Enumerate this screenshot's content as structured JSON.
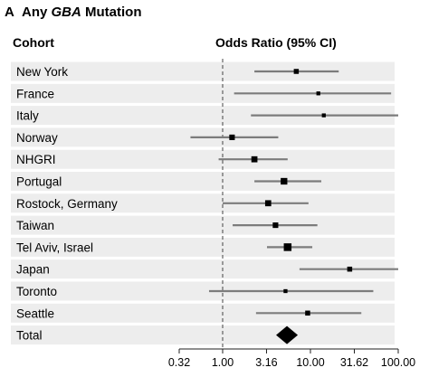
{
  "panel": {
    "letter": "A",
    "title_prefix": "Any ",
    "title_gene": "GBA",
    "title_suffix": " Mutation"
  },
  "headers": {
    "cohort": "Cohort",
    "odds_ratio": "Odds Ratio (95% CI)"
  },
  "colors": {
    "stripe": "#ededed",
    "ci_line": "#7c7c7c",
    "marker": "#000000",
    "reference_line": "#444444",
    "axis": "#222222"
  },
  "chart_data": {
    "type": "forest",
    "x_scale": "log",
    "xlim": [
      0.32,
      100.0
    ],
    "reference_value": 1.0,
    "x_ticks": [
      "0.32",
      "1.00",
      "3.16",
      "10.00",
      "31.62",
      "100.00"
    ],
    "x_tick_values": [
      0.32,
      1.0,
      3.16,
      10.0,
      31.62,
      100.0
    ],
    "rows": [
      {
        "label": "New York",
        "or": 6.9,
        "lower": 2.3,
        "upper": 21.0,
        "weight": 0.5
      },
      {
        "label": "France",
        "or": 12.3,
        "lower": 1.35,
        "upper": 83.0,
        "weight": 0.3
      },
      {
        "label": "Italy",
        "or": 14.2,
        "lower": 2.1,
        "upper": 100.0,
        "weight": 0.3
      },
      {
        "label": "Norway",
        "or": 1.28,
        "lower": 0.43,
        "upper": 4.3,
        "weight": 0.6
      },
      {
        "label": "NHGRI",
        "or": 2.3,
        "lower": 0.9,
        "upper": 5.5,
        "weight": 0.7
      },
      {
        "label": "Portugal",
        "or": 5.0,
        "lower": 2.3,
        "upper": 13.3,
        "weight": 0.8
      },
      {
        "label": "Rostock, Germany",
        "or": 3.3,
        "lower": 1.0,
        "upper": 9.5,
        "weight": 0.7
      },
      {
        "label": "Taiwan",
        "or": 4.0,
        "lower": 1.3,
        "upper": 12.0,
        "weight": 0.6
      },
      {
        "label": "Tel Aviv, Israel",
        "or": 5.5,
        "lower": 3.2,
        "upper": 10.5,
        "weight": 1.0
      },
      {
        "label": "Japan",
        "or": 28.0,
        "lower": 7.5,
        "upper": 100.0,
        "weight": 0.5
      },
      {
        "label": "Toronto",
        "or": 5.2,
        "lower": 0.7,
        "upper": 52.0,
        "weight": 0.3
      },
      {
        "label": "Seattle",
        "or": 9.3,
        "lower": 2.4,
        "upper": 38.0,
        "weight": 0.5
      }
    ],
    "total": {
      "label": "Total",
      "or": 5.4
    }
  }
}
